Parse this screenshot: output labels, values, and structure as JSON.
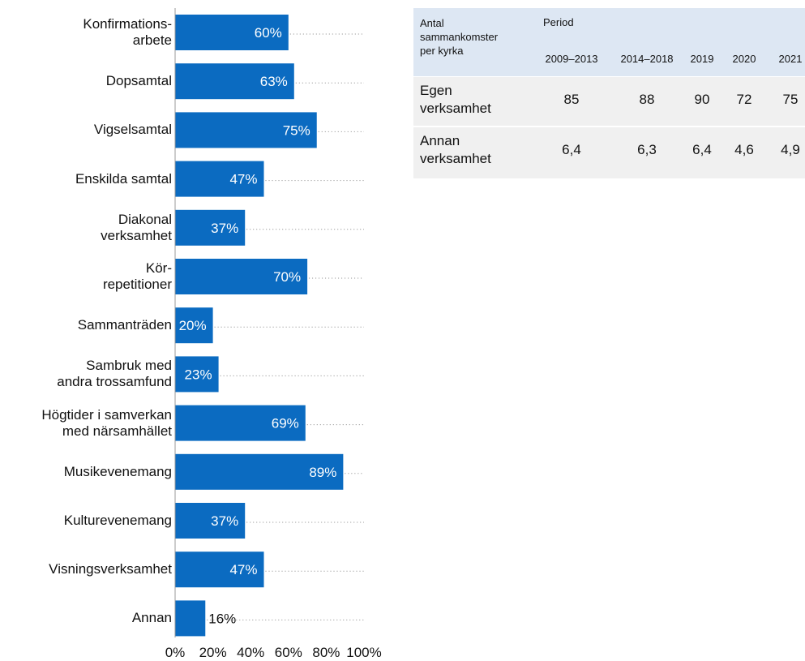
{
  "chart_data": {
    "type": "hbar",
    "categories": [
      "Konfirmations-\narbete",
      "Dopsamtal",
      "Vigselsamtal",
      "Enskilda samtal",
      "Diakonal\nverksamhet",
      "Kör-\nrepetitioner",
      "Sammanträden",
      "Sambruk med\nandra trossamfund",
      "Högtider i samverkan\nmed närsamhället",
      "Musikevenemang",
      "Kulturevenemang",
      "Visningsverksamhet",
      "Annan"
    ],
    "values": [
      60,
      63,
      75,
      47,
      37,
      70,
      20,
      23,
      69,
      89,
      37,
      47,
      16
    ],
    "value_labels": [
      "60%",
      "63%",
      "75%",
      "47%",
      "37%",
      "70%",
      "20%",
      "23%",
      "69%",
      "89%",
      "37%",
      "47%",
      "16%"
    ],
    "color": "#0b6bc1",
    "xlim": [
      0,
      100
    ],
    "xticks": [
      {
        "value": 0,
        "label": "0%"
      },
      {
        "value": 20,
        "label": "20%"
      },
      {
        "value": 40,
        "label": "40%"
      },
      {
        "value": 60,
        "label": "60%"
      },
      {
        "value": 80,
        "label": "80%"
      },
      {
        "value": 100,
        "label": "100%"
      }
    ]
  },
  "table": {
    "corner": "Antal\nsammankomster\nper kyrka",
    "group": "Period",
    "columns": [
      "2009–2013",
      "2014–2018",
      "2019",
      "2020",
      "2021"
    ],
    "rows": [
      [
        "Egen\nverksamhet",
        "85",
        "88",
        "90",
        "72",
        "75"
      ],
      [
        "Annan\nverksamhet",
        "6,4",
        "6,3",
        "6,4",
        "4,6",
        "4,9"
      ]
    ]
  }
}
